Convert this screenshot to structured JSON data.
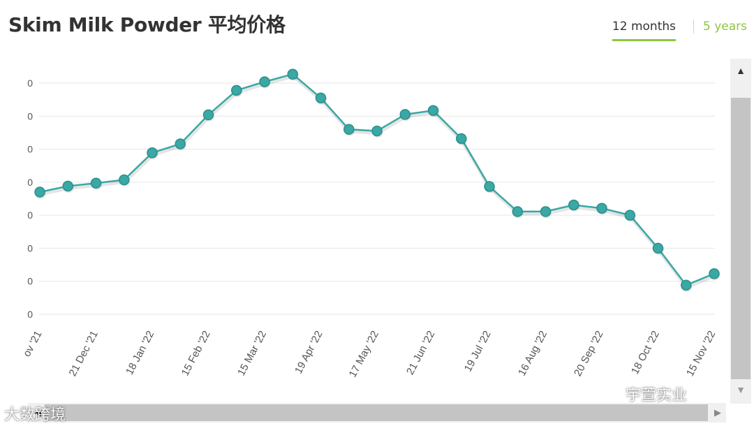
{
  "title": "Skim Milk Powder 平均价格",
  "tabs": [
    {
      "label": "12 months",
      "active": true
    },
    {
      "label": "5 years",
      "active": false
    }
  ],
  "accent_color": "#8cc63f",
  "series_color": "#3aa8a4",
  "watermarks": {
    "right": "宇萱实业",
    "left": "大数跨境"
  },
  "chart_data": {
    "type": "line",
    "title": "Skim Milk Powder 平均价格",
    "xlabel": "",
    "ylabel": "",
    "y_tick_labels": [
      "0",
      "0",
      "0",
      "0",
      "0",
      "0",
      "0",
      "0"
    ],
    "x_tick_labels": [
      "ov '21",
      "21 Dec '21",
      "18 Jan '22",
      "15 Feb '22",
      "15 Mar '22",
      "19 Apr '22",
      "17 May '22",
      "21 Jun '22",
      "19 Jul '22",
      "16 Aug '22",
      "20 Sep '22",
      "18 Oct '22",
      "15 Nov '22"
    ],
    "grid": true,
    "legend": "none",
    "ylim": [
      0,
      7
    ],
    "series": [
      {
        "values": [
          3.7,
          3.88,
          3.97,
          4.07,
          4.89,
          5.16,
          6.04,
          6.78,
          7.04,
          7.27,
          6.55,
          5.6,
          5.55,
          6.05,
          6.17,
          5.32,
          3.87,
          3.11,
          3.11,
          3.31,
          3.21,
          3.0,
          2.0,
          0.88,
          1.23
        ]
      }
    ]
  }
}
